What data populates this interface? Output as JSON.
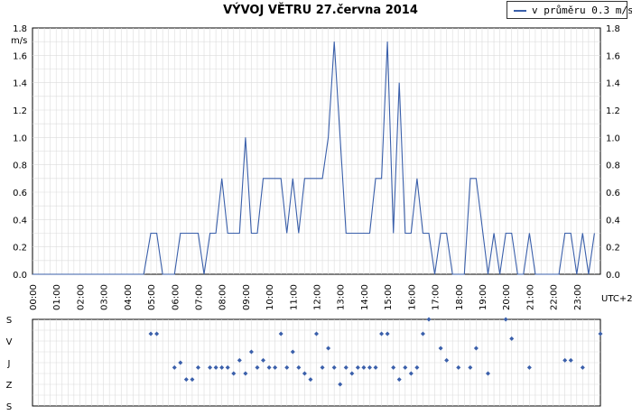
{
  "chart_data": [
    {
      "type": "line",
      "title": "VÝVOJ VĚTRU  27.června 2014",
      "ylabel": "m/s",
      "xlabel": "UTC+2",
      "ylim": [
        0,
        1.8
      ],
      "xlim": [
        0,
        24
      ],
      "grid": true,
      "legend_placement": "top-right",
      "yticks": [
        "0.0",
        "0.2",
        "0.4",
        "0.6",
        "0.8",
        "1.0",
        "1.2",
        "1.4",
        "1.6",
        "1.8"
      ],
      "xticks": [
        "00:00",
        "01:00",
        "02:00",
        "03:00",
        "04:00",
        "05:00",
        "06:00",
        "07:00",
        "08:00",
        "09:00",
        "10:00",
        "11:00",
        "12:00",
        "13:00",
        "14:00",
        "15:00",
        "16:00",
        "17:00",
        "18:00",
        "19:00",
        "20:00",
        "21:00",
        "22:00",
        "23:00"
      ],
      "series": [
        {
          "name": "v průměru 0.3 m/s",
          "color": "#3a5faa",
          "points": [
            [
              0,
              0
            ],
            [
              4.7,
              0
            ],
            [
              5.0,
              0.3
            ],
            [
              5.25,
              0.3
            ],
            [
              5.5,
              0
            ],
            [
              6.0,
              0
            ],
            [
              6.25,
              0.3
            ],
            [
              7.0,
              0.3
            ],
            [
              7.25,
              0
            ],
            [
              7.5,
              0.3
            ],
            [
              7.75,
              0.3
            ],
            [
              8.0,
              0.7
            ],
            [
              8.25,
              0.3
            ],
            [
              8.75,
              0.3
            ],
            [
              9.0,
              1.0
            ],
            [
              9.25,
              0.3
            ],
            [
              9.5,
              0.3
            ],
            [
              9.75,
              0.7
            ],
            [
              10.5,
              0.7
            ],
            [
              10.75,
              0.3
            ],
            [
              11.0,
              0.7
            ],
            [
              11.25,
              0.3
            ],
            [
              11.5,
              0.7
            ],
            [
              12.25,
              0.7
            ],
            [
              12.5,
              1.0
            ],
            [
              12.75,
              1.7
            ],
            [
              13.0,
              1.0
            ],
            [
              13.25,
              0.3
            ],
            [
              14.25,
              0.3
            ],
            [
              14.5,
              0.7
            ],
            [
              14.75,
              0.7
            ],
            [
              15.0,
              1.7
            ],
            [
              15.25,
              0.3
            ],
            [
              15.5,
              1.4
            ],
            [
              15.75,
              0.3
            ],
            [
              16.0,
              0.3
            ],
            [
              16.25,
              0.7
            ],
            [
              16.5,
              0.3
            ],
            [
              16.75,
              0.3
            ],
            [
              17.0,
              0
            ],
            [
              17.25,
              0.3
            ],
            [
              17.5,
              0.3
            ],
            [
              17.75,
              0
            ],
            [
              18.25,
              0
            ],
            [
              18.5,
              0.7
            ],
            [
              18.75,
              0.7
            ],
            [
              19.25,
              0
            ],
            [
              19.5,
              0.3
            ],
            [
              19.75,
              0
            ],
            [
              20.0,
              0.3
            ],
            [
              20.25,
              0.3
            ],
            [
              20.5,
              0
            ],
            [
              20.75,
              0
            ],
            [
              21.0,
              0.3
            ],
            [
              21.25,
              0
            ],
            [
              22.25,
              0
            ],
            [
              22.5,
              0.3
            ],
            [
              22.75,
              0.3
            ],
            [
              23.0,
              0
            ],
            [
              23.25,
              0.3
            ],
            [
              23.5,
              0
            ],
            [
              23.75,
              0.3
            ]
          ]
        }
      ]
    },
    {
      "type": "scatter",
      "title": "",
      "ylabel": "",
      "xlabel": "",
      "xlim": [
        0,
        24
      ],
      "yticks": [
        "S",
        "V",
        "J",
        "Z",
        "S"
      ],
      "ylim": [
        0,
        360
      ],
      "grid": true,
      "series": [
        {
          "name": "",
          "color": "#3a5faa",
          "points": [
            [
              5.0,
              60
            ],
            [
              5.25,
              60
            ],
            [
              6.0,
              200
            ],
            [
              6.25,
              180
            ],
            [
              6.5,
              250
            ],
            [
              6.75,
              250
            ],
            [
              7.0,
              200
            ],
            [
              7.5,
              200
            ],
            [
              7.75,
              200
            ],
            [
              8.0,
              200
            ],
            [
              8.25,
              200
            ],
            [
              8.5,
              225
            ],
            [
              8.75,
              170
            ],
            [
              9.0,
              225
            ],
            [
              9.25,
              135
            ],
            [
              9.5,
              200
            ],
            [
              9.75,
              170
            ],
            [
              10.0,
              200
            ],
            [
              10.25,
              200
            ],
            [
              10.5,
              60
            ],
            [
              10.75,
              200
            ],
            [
              11.0,
              135
            ],
            [
              11.25,
              200
            ],
            [
              11.5,
              225
            ],
            [
              11.75,
              250
            ],
            [
              12.0,
              60
            ],
            [
              12.25,
              200
            ],
            [
              12.5,
              120
            ],
            [
              12.75,
              200
            ],
            [
              13.0,
              270
            ],
            [
              13.25,
              200
            ],
            [
              13.5,
              225
            ],
            [
              13.75,
              200
            ],
            [
              14.0,
              200
            ],
            [
              14.25,
              200
            ],
            [
              14.5,
              200
            ],
            [
              14.75,
              60
            ],
            [
              15.0,
              60
            ],
            [
              15.25,
              200
            ],
            [
              15.5,
              250
            ],
            [
              15.75,
              200
            ],
            [
              16.0,
              225
            ],
            [
              16.25,
              200
            ],
            [
              16.5,
              60
            ],
            [
              16.75,
              0
            ],
            [
              17.25,
              120
            ],
            [
              17.5,
              170
            ],
            [
              18.0,
              200
            ],
            [
              18.5,
              200
            ],
            [
              18.75,
              120
            ],
            [
              19.25,
              225
            ],
            [
              20.0,
              0
            ],
            [
              20.25,
              80
            ],
            [
              21.0,
              200
            ],
            [
              22.5,
              170
            ],
            [
              22.75,
              170
            ],
            [
              23.25,
              200
            ],
            [
              24.0,
              60
            ]
          ]
        }
      ]
    }
  ]
}
